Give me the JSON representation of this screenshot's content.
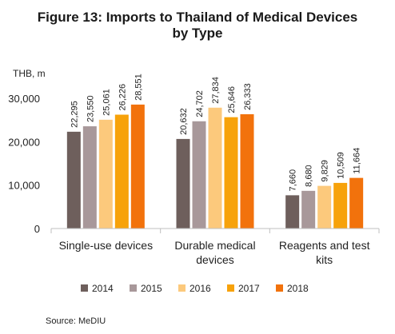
{
  "source": "Source: MeDIU",
  "chart_data": {
    "type": "bar",
    "title_lines": [
      "Figure 13: Imports to Thailand of Medical Devices",
      "by Type"
    ],
    "ylabel": "THB, m",
    "ylim": [
      0,
      30000
    ],
    "yticks": [
      0,
      10000,
      20000,
      30000
    ],
    "ytick_labels": [
      "0",
      "10,000",
      "20,000",
      "30,000"
    ],
    "grid": false,
    "legend_position": "bottom",
    "categories": [
      [
        "Single-use devices"
      ],
      [
        "Durable medical",
        "devices"
      ],
      [
        "Reagents and test",
        "kits"
      ]
    ],
    "series": [
      {
        "name": "2014",
        "color": "#6e5f5c",
        "values": [
          22295,
          20632,
          7660
        ],
        "labels": [
          "22,295",
          "20,632",
          "7,660"
        ]
      },
      {
        "name": "2015",
        "color": "#a8989a",
        "values": [
          23550,
          24702,
          8680
        ],
        "labels": [
          "23,550",
          "24,702",
          "8,680"
        ]
      },
      {
        "name": "2016",
        "color": "#fcc97c",
        "values": [
          25061,
          27834,
          9829
        ],
        "labels": [
          "25,061",
          "27,834",
          "9,829"
        ]
      },
      {
        "name": "2017",
        "color": "#f7a20a",
        "values": [
          26226,
          25646,
          10509
        ],
        "labels": [
          "26,226",
          "25,646",
          "10,509"
        ]
      },
      {
        "name": "2018",
        "color": "#f2720c",
        "values": [
          28551,
          26333,
          11664
        ],
        "labels": [
          "28,551",
          "26,333",
          "11,664"
        ]
      }
    ]
  }
}
